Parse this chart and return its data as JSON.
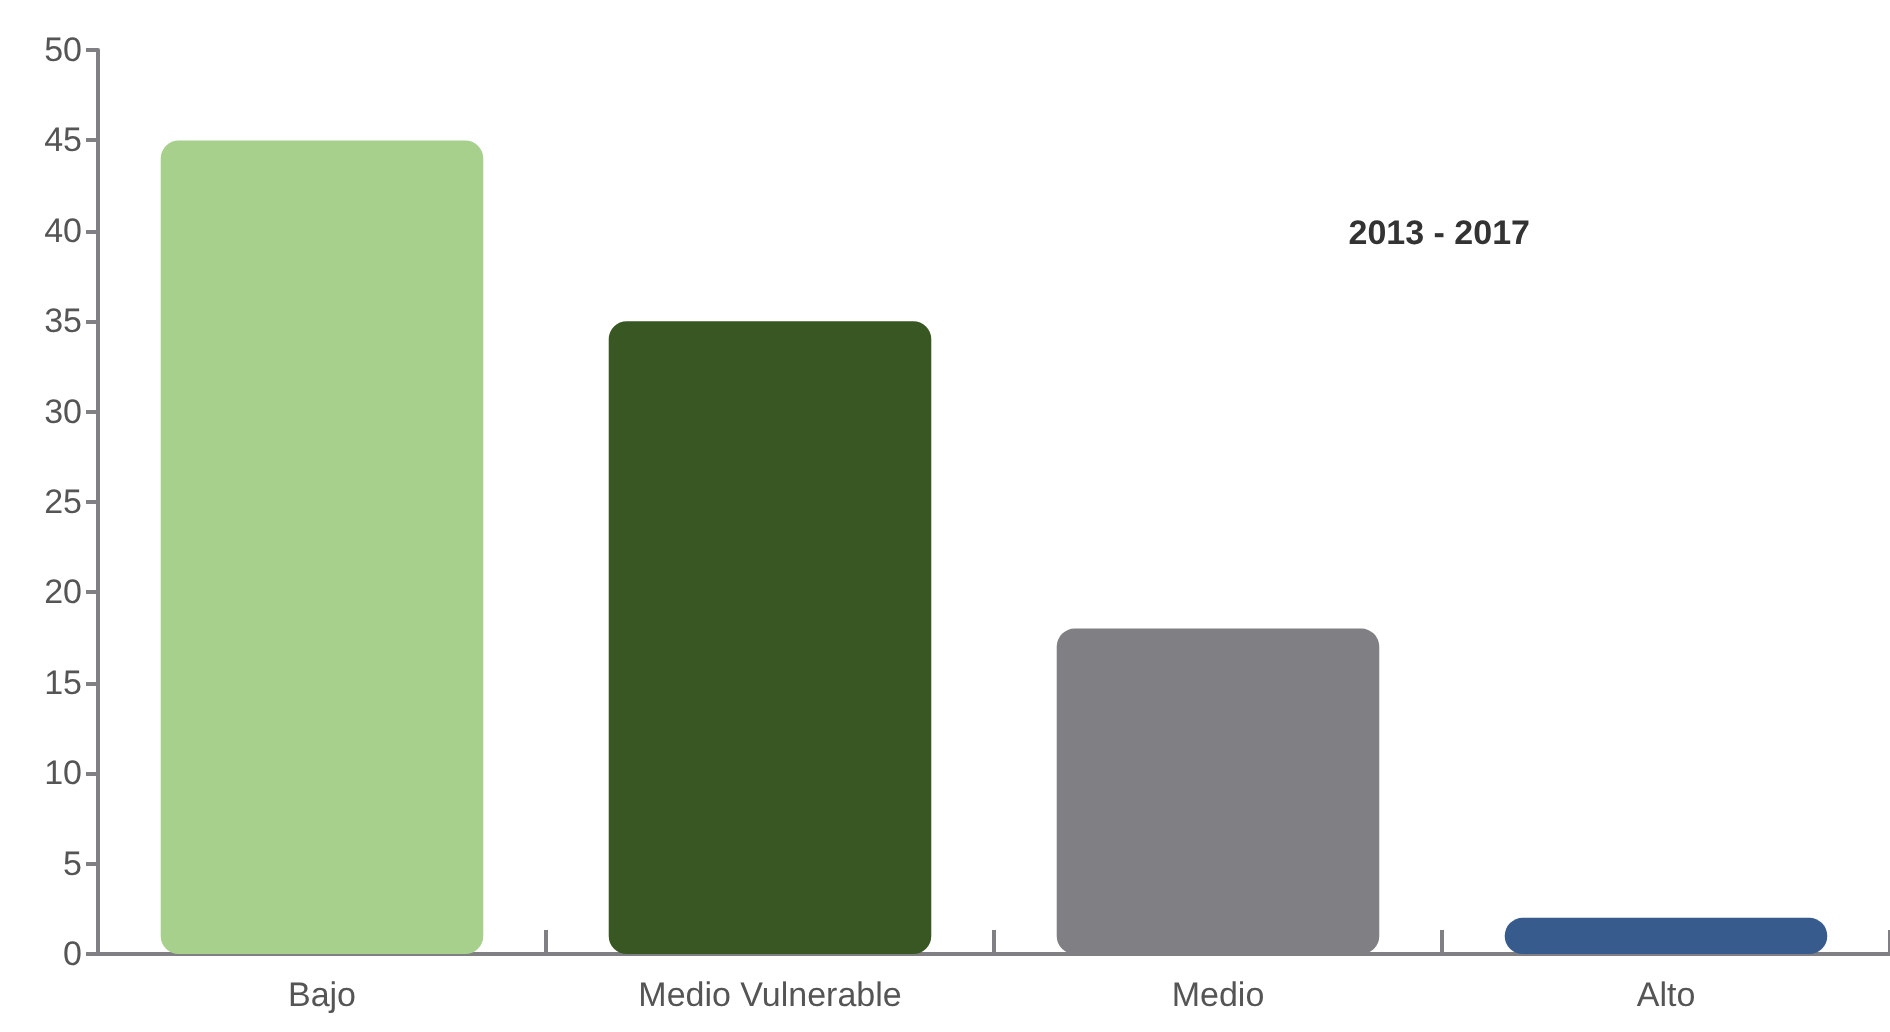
{
  "chart_data": {
    "type": "bar",
    "categories": [
      "Bajo",
      "Medio Vulnerable",
      "Medio",
      "Alto"
    ],
    "values": [
      45,
      35,
      18,
      2
    ],
    "colors": [
      "#a8d08d",
      "#385723",
      "#808084",
      "#365b8c"
    ],
    "ylim": [
      0,
      50
    ],
    "yticks": [
      0,
      5,
      10,
      15,
      20,
      25,
      30,
      35,
      40,
      45,
      50
    ],
    "grid": false,
    "annotations": [
      "2013 - 2017"
    ]
  }
}
